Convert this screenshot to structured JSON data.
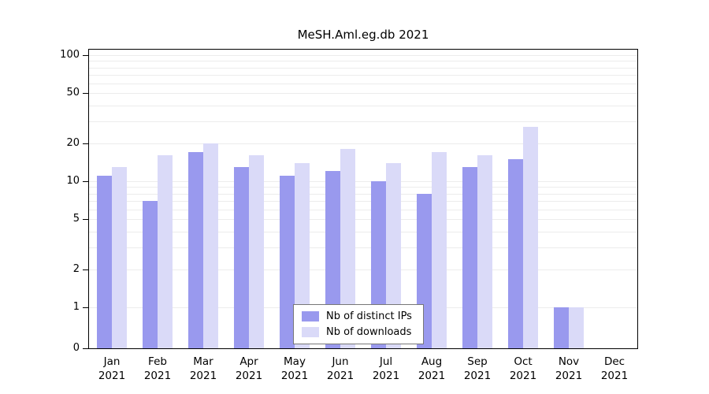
{
  "chart_data": {
    "type": "bar",
    "title": "MeSH.Aml.eg.db 2021",
    "categories": [
      "Jan 2021",
      "Feb 2021",
      "Mar 2021",
      "Apr 2021",
      "May 2021",
      "Jun 2021",
      "Jul 2021",
      "Aug 2021",
      "Sep 2021",
      "Oct 2021",
      "Nov 2021",
      "Dec 2021"
    ],
    "series": [
      {
        "name": "Nb of distinct IPs",
        "key": "distinct-ips",
        "color": "#9999ee",
        "values": [
          11,
          7,
          17,
          13,
          11,
          12,
          10,
          8,
          13,
          15,
          1,
          0
        ]
      },
      {
        "name": "Nb of downloads",
        "key": "downloads",
        "color": "#dadaf8",
        "values": [
          13,
          16,
          20,
          16,
          14,
          18,
          14,
          17,
          16,
          27,
          1,
          0
        ]
      }
    ],
    "yscale": "log",
    "yticks": [
      0,
      1,
      2,
      5,
      10,
      20,
      50,
      100
    ],
    "ylim": [
      0,
      100
    ],
    "xlabel": "",
    "ylabel": "",
    "grid": true,
    "legend_position": "inside-bottom-center"
  },
  "colors": {
    "grid": "#ececec",
    "axis": "#000000",
    "background": "#ffffff"
  }
}
